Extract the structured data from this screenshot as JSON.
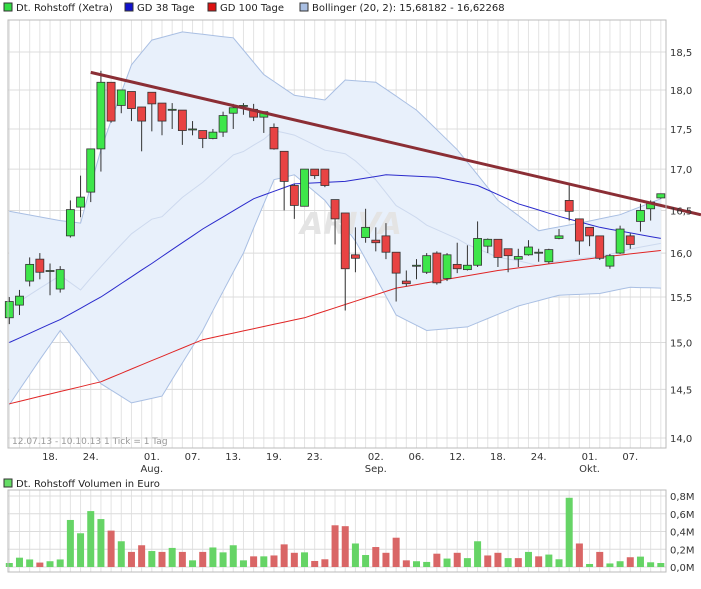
{
  "legend": [
    {
      "label": "Dt. Rohstoff (Xetra)",
      "color": "#33dd44"
    },
    {
      "label": "GD 38 Tage",
      "color": "#1111cc"
    },
    {
      "label": "GD 100 Tage",
      "color": "#dd1111"
    },
    {
      "label": "Bollinger (20, 2): 15,68182 - 16,62268",
      "color": "#a9bfe3"
    }
  ],
  "watermark": "ARIVA",
  "range_note": "12.07.13 - 10.10.13   1 Tick = 1 Tag",
  "volume_legend": {
    "label": "Dt. Rohstoff Volumen in Euro",
    "color": "#66dd66"
  },
  "colors": {
    "up": "#3ee64a",
    "down": "#e84343",
    "vol_up": "#66d466",
    "vol_down": "#d96666",
    "gd38": "#2a2acc",
    "gd100": "#e02525",
    "band_fill": "#e8f0fb",
    "band_line": "#a9bfe3",
    "trendline": "#8b2e35"
  },
  "chart_data": [
    {
      "type": "candlestick",
      "scale": "log",
      "ylim": [
        14.0,
        18.7
      ],
      "y_ticks": [
        "18,5",
        "18,0",
        "17,5",
        "17,0",
        "16,5",
        "16,0",
        "15,5",
        "15,0",
        "14,5",
        "14,0"
      ],
      "y_tick_values": [
        18.5,
        18.0,
        17.5,
        17.0,
        16.5,
        16.0,
        15.5,
        15.0,
        14.5,
        14.0
      ],
      "x_ticks": [
        {
          "date": "18.07.",
          "label": "18.",
          "sub": ""
        },
        {
          "date": "24.07.",
          "label": "24.",
          "sub": ""
        },
        {
          "date": "01.08.",
          "label": "01.",
          "sub": "Aug."
        },
        {
          "date": "07.08.",
          "label": "07.",
          "sub": ""
        },
        {
          "date": "13.08.",
          "label": "13.",
          "sub": ""
        },
        {
          "date": "19.08.",
          "label": "19.",
          "sub": ""
        },
        {
          "date": "23.08.",
          "label": "23.",
          "sub": ""
        },
        {
          "date": "02.09.",
          "label": "02.",
          "sub": "Sep."
        },
        {
          "date": "06.09.",
          "label": "06.",
          "sub": ""
        },
        {
          "date": "12.09.",
          "label": "12.",
          "sub": ""
        },
        {
          "date": "18.09.",
          "label": "18.",
          "sub": ""
        },
        {
          "date": "24.09.",
          "label": "24.",
          "sub": ""
        },
        {
          "date": "01.10.",
          "label": "01.",
          "sub": "Okt."
        },
        {
          "date": "07.10.",
          "label": "07.",
          "sub": ""
        }
      ],
      "grid": true,
      "dates": [
        "12.07.",
        "15.07.",
        "16.07.",
        "17.07.",
        "18.07.",
        "19.07.",
        "22.07.",
        "23.07.",
        "24.07.",
        "25.07.",
        "26.07.",
        "29.07.",
        "30.07.",
        "31.07.",
        "01.08.",
        "02.08.",
        "05.08.",
        "06.08.",
        "07.08.",
        "08.08.",
        "09.08.",
        "12.08.",
        "13.08.",
        "14.08.",
        "15.08.",
        "16.08.",
        "19.08.",
        "20.08.",
        "21.08.",
        "22.08.",
        "23.08.",
        "26.08.",
        "27.08.",
        "28.08.",
        "29.08.",
        "30.08.",
        "02.09.",
        "03.09.",
        "04.09.",
        "05.09.",
        "06.09.",
        "09.09.",
        "10.09.",
        "11.09.",
        "12.09.",
        "13.09.",
        "16.09.",
        "17.09.",
        "18.09.",
        "19.09.",
        "20.09.",
        "23.09.",
        "24.09.",
        "25.09.",
        "26.09.",
        "27.09.",
        "30.09.",
        "01.10.",
        "02.10.",
        "03.10.",
        "04.10.",
        "07.10.",
        "08.10.",
        "09.10.",
        "10.10."
      ],
      "ohlc": [
        [
          15.27,
          15.5,
          15.2,
          15.45
        ],
        [
          15.41,
          15.58,
          15.3,
          15.51
        ],
        [
          15.68,
          15.95,
          15.62,
          15.87
        ],
        [
          15.93,
          16.0,
          15.7,
          15.78
        ],
        [
          15.8,
          15.88,
          15.52,
          15.8
        ],
        [
          15.59,
          15.85,
          15.55,
          15.81
        ],
        [
          16.2,
          16.62,
          16.18,
          16.51
        ],
        [
          16.54,
          16.92,
          16.42,
          16.66
        ],
        [
          16.72,
          17.25,
          16.6,
          17.25
        ],
        [
          17.25,
          18.25,
          16.97,
          18.1
        ],
        [
          18.1,
          18.1,
          17.58,
          17.6
        ],
        [
          17.8,
          18.0,
          17.7,
          18.0
        ],
        [
          17.98,
          17.98,
          17.6,
          17.76
        ],
        [
          17.78,
          17.78,
          17.22,
          17.6
        ],
        [
          17.97,
          17.97,
          17.47,
          17.82
        ],
        [
          17.83,
          17.83,
          17.42,
          17.6
        ],
        [
          17.75,
          17.83,
          17.5,
          17.75
        ],
        [
          17.74,
          17.74,
          17.3,
          17.48
        ],
        [
          17.5,
          17.6,
          17.42,
          17.5
        ],
        [
          17.48,
          17.48,
          17.26,
          17.38
        ],
        [
          17.38,
          17.5,
          17.37,
          17.46
        ],
        [
          17.46,
          17.72,
          17.4,
          17.67
        ],
        [
          17.7,
          17.82,
          17.5,
          17.77
        ],
        [
          17.8,
          17.83,
          17.68,
          17.8
        ],
        [
          17.75,
          17.82,
          17.6,
          17.65
        ],
        [
          17.65,
          17.72,
          17.45,
          17.72
        ],
        [
          17.52,
          17.57,
          17.24,
          17.25
        ],
        [
          17.22,
          17.22,
          16.5,
          16.85
        ],
        [
          16.8,
          16.82,
          16.4,
          16.56
        ],
        [
          16.55,
          17.0,
          16.55,
          17.0
        ],
        [
          17.0,
          17.0,
          16.88,
          16.92
        ],
        [
          17.0,
          17.0,
          16.78,
          16.8
        ],
        [
          16.63,
          16.63,
          16.1,
          16.4
        ],
        [
          16.47,
          16.47,
          15.35,
          15.82
        ],
        [
          15.98,
          16.3,
          15.78,
          15.94
        ],
        [
          16.18,
          16.52,
          16.12,
          16.3
        ],
        [
          16.15,
          16.3,
          16.02,
          16.12
        ],
        [
          16.2,
          16.35,
          15.93,
          16.01
        ],
        [
          16.01,
          16.01,
          15.45,
          15.77
        ],
        [
          15.68,
          15.8,
          15.62,
          15.65
        ],
        [
          15.86,
          15.93,
          15.7,
          15.86
        ],
        [
          15.78,
          16.0,
          15.76,
          15.97
        ],
        [
          16.0,
          16.02,
          15.64,
          15.66
        ],
        [
          15.71,
          16.0,
          15.68,
          15.98
        ],
        [
          15.87,
          16.12,
          15.77,
          15.82
        ],
        [
          15.81,
          16.09,
          15.8,
          15.86
        ],
        [
          15.86,
          16.37,
          15.84,
          16.17
        ],
        [
          16.08,
          16.17,
          16.0,
          16.16
        ],
        [
          16.16,
          16.16,
          15.84,
          15.95
        ],
        [
          16.05,
          16.05,
          15.78,
          15.97
        ],
        [
          15.93,
          16.05,
          15.84,
          15.96
        ],
        [
          15.98,
          16.15,
          15.97,
          16.07
        ],
        [
          16.01,
          16.05,
          15.9,
          16.01
        ],
        [
          15.9,
          16.05,
          15.88,
          16.04
        ],
        [
          16.17,
          16.28,
          16.16,
          16.2
        ],
        [
          16.62,
          16.8,
          16.38,
          16.49
        ],
        [
          16.4,
          16.4,
          15.98,
          16.14
        ],
        [
          16.3,
          16.3,
          16.08,
          16.2
        ],
        [
          16.2,
          16.2,
          15.92,
          15.94
        ],
        [
          15.85,
          15.99,
          15.82,
          15.97
        ],
        [
          16.0,
          16.32,
          15.99,
          16.28
        ],
        [
          16.2,
          16.23,
          16.05,
          16.1
        ],
        [
          16.37,
          16.58,
          16.25,
          16.5
        ],
        [
          16.52,
          16.62,
          16.38,
          16.6
        ],
        [
          16.65,
          16.7,
          16.64,
          16.7
        ]
      ],
      "gd38": [
        [
          0,
          15.0
        ],
        [
          5,
          15.25
        ],
        [
          9,
          15.5
        ],
        [
          14,
          15.88
        ],
        [
          19,
          16.28
        ],
        [
          24,
          16.64
        ],
        [
          28,
          16.82
        ],
        [
          33,
          16.85
        ],
        [
          37,
          16.93
        ],
        [
          42,
          16.9
        ],
        [
          46,
          16.8
        ],
        [
          50,
          16.58
        ],
        [
          54,
          16.43
        ],
        [
          58,
          16.3
        ],
        [
          64,
          16.17
        ]
      ],
      "gd100": [
        [
          0,
          14.35
        ],
        [
          9,
          14.58
        ],
        [
          19,
          15.03
        ],
        [
          29,
          15.27
        ],
        [
          38,
          15.6
        ],
        [
          48,
          15.8
        ],
        [
          58,
          15.95
        ],
        [
          64,
          16.03
        ]
      ],
      "bollinger_upper": [
        [
          0,
          16.49
        ],
        [
          5,
          16.38
        ],
        [
          7,
          16.35
        ],
        [
          9,
          17.24
        ],
        [
          12,
          18.33
        ],
        [
          14,
          18.66
        ],
        [
          17,
          18.77
        ],
        [
          22,
          18.69
        ],
        [
          25,
          18.2
        ],
        [
          28,
          17.93
        ],
        [
          31,
          17.87
        ],
        [
          33,
          18.13
        ],
        [
          36,
          18.1
        ],
        [
          40,
          17.74
        ],
        [
          44,
          17.24
        ],
        [
          48,
          16.62
        ],
        [
          52,
          16.26
        ],
        [
          56,
          16.35
        ],
        [
          60,
          16.45
        ],
        [
          64,
          16.64
        ]
      ],
      "bollinger_lower": [
        [
          0,
          14.34
        ],
        [
          5,
          15.13
        ],
        [
          9,
          14.56
        ],
        [
          12,
          14.36
        ],
        [
          15,
          14.43
        ],
        [
          19,
          15.13
        ],
        [
          23,
          16.0
        ],
        [
          26,
          16.87
        ],
        [
          28,
          16.93
        ],
        [
          31,
          16.62
        ],
        [
          34,
          16.14
        ],
        [
          38,
          15.3
        ],
        [
          41,
          15.13
        ],
        [
          45,
          15.17
        ],
        [
          50,
          15.4
        ],
        [
          54,
          15.52
        ],
        [
          58,
          15.54
        ],
        [
          61,
          15.61
        ],
        [
          64,
          15.6
        ]
      ],
      "trendline": {
        "start": {
          "date": "24.07.",
          "value": 18.23
        },
        "end": {
          "date": "10.10.",
          "value": 16.56
        },
        "extend_right": true
      }
    },
    {
      "type": "bar",
      "title": "Dt. Rohstoff Volumen in Euro",
      "ylim": [
        0,
        0.8
      ],
      "y_ticks": [
        "0,8M",
        "0,6M",
        "0,4M",
        "0,2M",
        "0,0M"
      ],
      "y_tick_values": [
        0.8,
        0.6,
        0.4,
        0.2,
        0.0
      ],
      "unit": "M",
      "values": [
        0.045,
        0.105,
        0.085,
        0.05,
        0.065,
        0.085,
        0.53,
        0.38,
        0.63,
        0.54,
        0.41,
        0.29,
        0.17,
        0.245,
        0.18,
        0.17,
        0.215,
        0.17,
        0.075,
        0.17,
        0.22,
        0.165,
        0.245,
        0.075,
        0.12,
        0.12,
        0.13,
        0.255,
        0.16,
        0.165,
        0.068,
        0.087,
        0.47,
        0.46,
        0.265,
        0.135,
        0.225,
        0.16,
        0.33,
        0.075,
        0.065,
        0.057,
        0.15,
        0.095,
        0.16,
        0.1,
        0.29,
        0.13,
        0.16,
        0.1,
        0.1,
        0.17,
        0.12,
        0.14,
        0.087,
        0.78,
        0.265,
        0.034,
        0.17,
        0.04,
        0.065,
        0.11,
        0.117,
        0.053,
        0.045
      ],
      "up": [
        1,
        1,
        1,
        0,
        1,
        1,
        1,
        1,
        1,
        1,
        0,
        1,
        0,
        0,
        1,
        0,
        1,
        0,
        1,
        0,
        1,
        1,
        1,
        1,
        0,
        1,
        0,
        0,
        0,
        1,
        0,
        0,
        0,
        0,
        1,
        1,
        0,
        0,
        0,
        0,
        1,
        1,
        0,
        1,
        0,
        1,
        1,
        0,
        0,
        1,
        0,
        1,
        0,
        1,
        1,
        1,
        0,
        1,
        0,
        1,
        1,
        0,
        1,
        1,
        1
      ]
    }
  ]
}
